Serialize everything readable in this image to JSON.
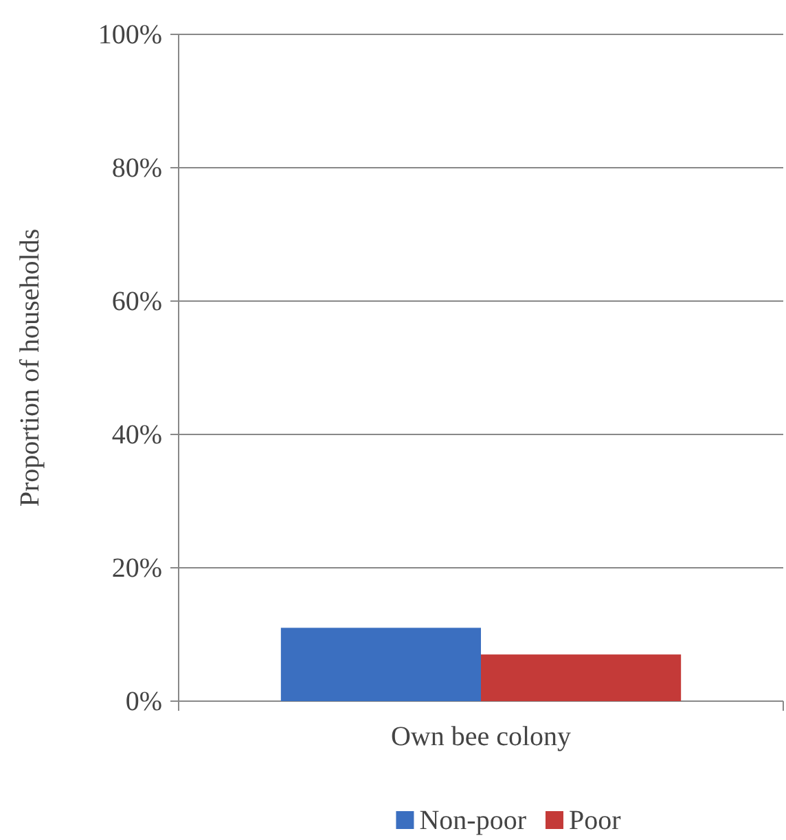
{
  "chart_data": {
    "type": "bar",
    "categories": [
      "Own bee colony"
    ],
    "series": [
      {
        "name": "Non-poor",
        "color": "#3b6fc0",
        "values": [
          11
        ]
      },
      {
        "name": "Poor",
        "color": "#c43a38",
        "values": [
          7
        ]
      }
    ],
    "ylabel": "Proportion of households",
    "ylim": [
      0,
      100
    ],
    "yticks": [
      {
        "value": 0,
        "label": "0%"
      },
      {
        "value": 20,
        "label": "20%"
      },
      {
        "value": 40,
        "label": "40%"
      },
      {
        "value": 60,
        "label": "60%"
      },
      {
        "value": 80,
        "label": "80%"
      },
      {
        "value": 100,
        "label": "100%"
      }
    ],
    "grid": "y",
    "legend": "bottom"
  }
}
